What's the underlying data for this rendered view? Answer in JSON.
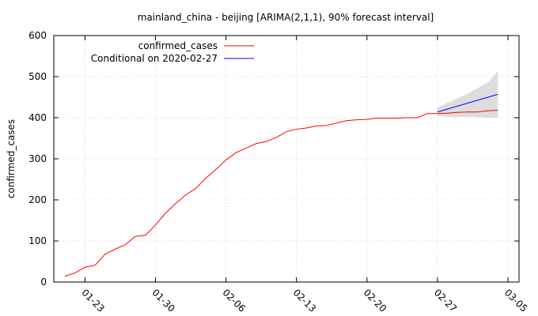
{
  "chart_data": {
    "type": "line",
    "title": "mainland_china - beijing [ARIMA(2,1,1), 90% forecast interval]",
    "xlabel": "",
    "ylabel": "confirmed_cases",
    "x_ticks": [
      "01-23",
      "01-30",
      "02-06",
      "02-13",
      "02-20",
      "02-27",
      "03-05"
    ],
    "ylim": [
      0,
      600
    ],
    "y_ticks": [
      "0",
      "100",
      "200",
      "300",
      "400",
      "500",
      "600"
    ],
    "grid": true,
    "legend_position": "top-left",
    "series": [
      {
        "name": "confirmed_cases",
        "color": "#ff0000",
        "points": [
          [
            "01-21",
            14
          ],
          [
            "01-22",
            22
          ],
          [
            "01-23",
            36
          ],
          [
            "01-24",
            41
          ],
          [
            "01-25",
            68
          ],
          [
            "01-26",
            80
          ],
          [
            "01-27",
            91
          ],
          [
            "01-28",
            111
          ],
          [
            "01-29",
            114
          ],
          [
            "01-30",
            139
          ],
          [
            "01-31",
            168
          ],
          [
            "02-01",
            191
          ],
          [
            "02-02",
            212
          ],
          [
            "02-03",
            228
          ],
          [
            "02-04",
            253
          ],
          [
            "02-05",
            274
          ],
          [
            "02-06",
            297
          ],
          [
            "02-07",
            315
          ],
          [
            "02-08",
            326
          ],
          [
            "02-09",
            337
          ],
          [
            "02-10",
            342
          ],
          [
            "02-11",
            352
          ],
          [
            "02-12",
            366
          ],
          [
            "02-13",
            372
          ],
          [
            "02-14",
            375
          ],
          [
            "02-15",
            380
          ],
          [
            "02-16",
            381
          ],
          [
            "02-17",
            387
          ],
          [
            "02-18",
            393
          ],
          [
            "02-19",
            395
          ],
          [
            "02-20",
            396
          ],
          [
            "02-21",
            399
          ],
          [
            "02-22",
            399
          ],
          [
            "02-23",
            399
          ],
          [
            "02-24",
            400
          ],
          [
            "02-25",
            400
          ],
          [
            "02-26",
            410
          ],
          [
            "02-27",
            410
          ],
          [
            "02-28",
            411
          ],
          [
            "02-29",
            413
          ],
          [
            "03-01",
            414
          ],
          [
            "03-02",
            414
          ],
          [
            "03-03",
            417
          ],
          [
            "03-04",
            418
          ]
        ]
      },
      {
        "name": "Conditional on 2020-02-27",
        "color": "#0000ff",
        "points": [
          [
            "02-27",
            414
          ],
          [
            "03-04",
            457
          ]
        ]
      }
    ],
    "forecast_interval": {
      "label": "90% forecast interval",
      "color": "#dddddd",
      "points": [
        [
          "02-27",
          404,
          425
        ],
        [
          "02-28",
          403,
          436
        ],
        [
          "02-29",
          402,
          447
        ],
        [
          "03-01",
          402,
          459
        ],
        [
          "03-02",
          401,
          472
        ],
        [
          "03-03",
          400,
          486
        ],
        [
          "03-04",
          400,
          513
        ]
      ]
    }
  }
}
